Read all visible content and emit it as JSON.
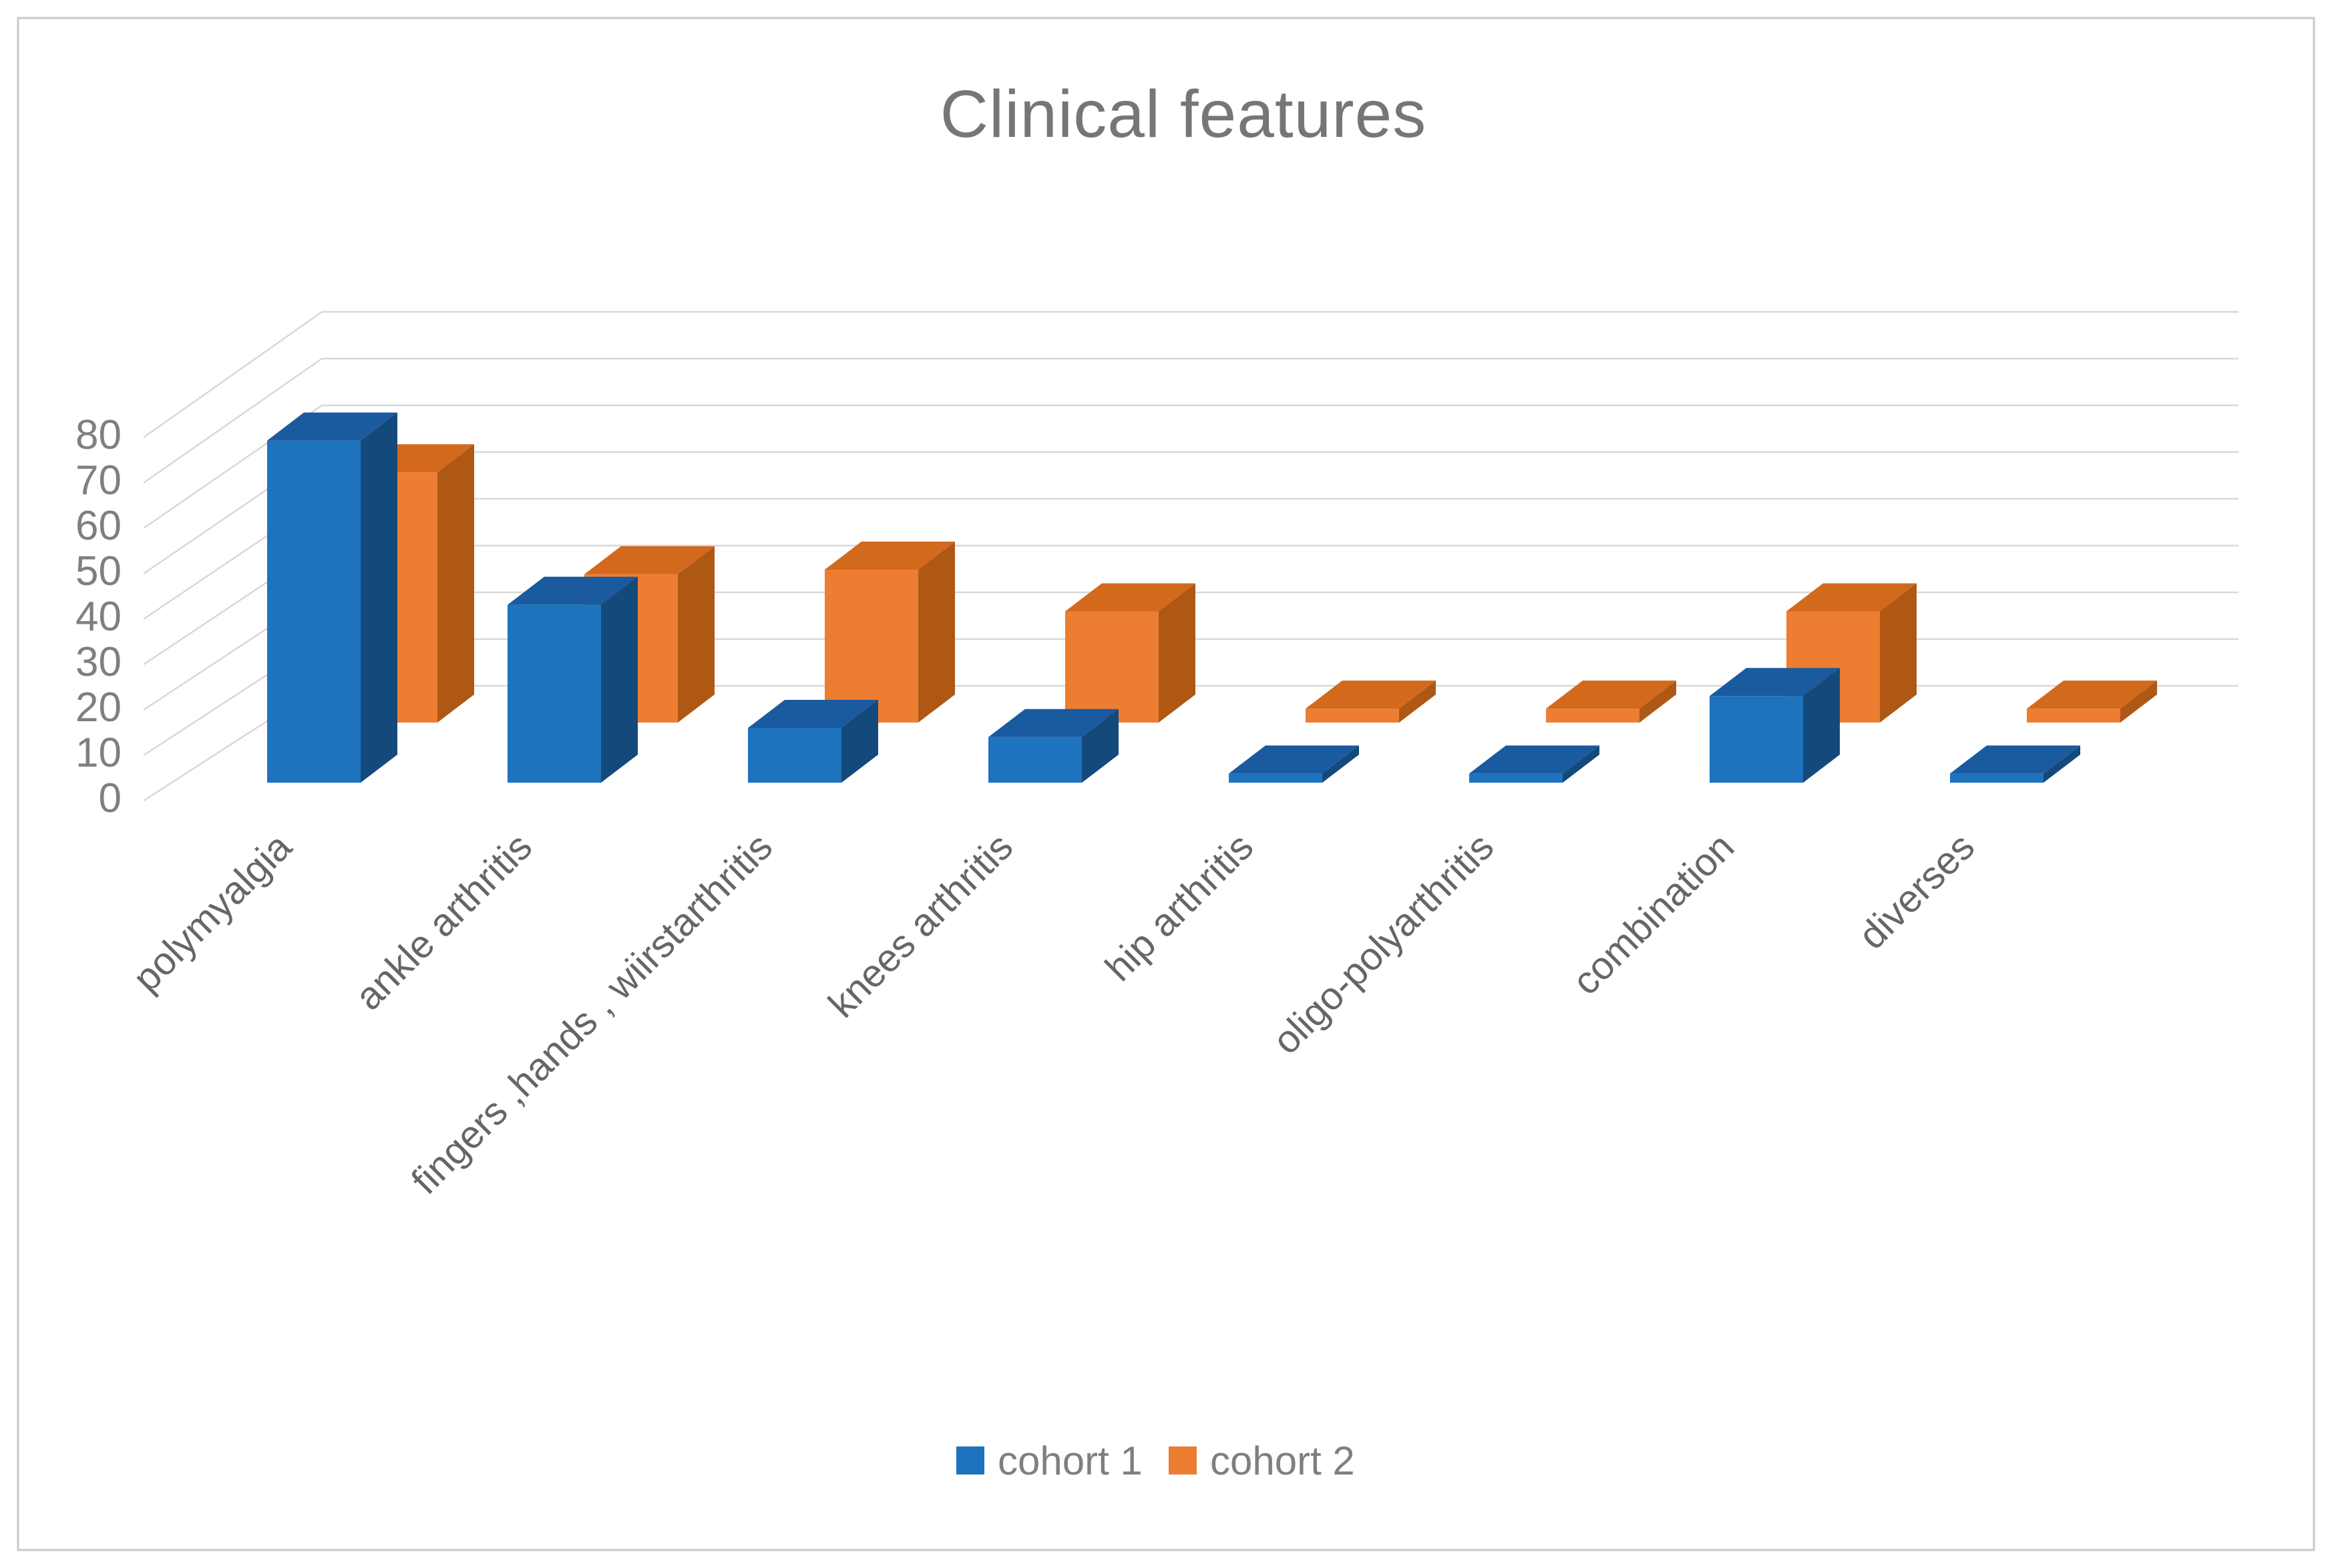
{
  "window": {
    "background": "#ffffff",
    "border_color": "#c9c9c9"
  },
  "chart_data": {
    "type": "bar",
    "variant": "3d-clustered-column",
    "title": "Clinical features",
    "title_color": "#767676",
    "categories": [
      "polymyalgia",
      "ankle arthritis",
      "fingers ,hands , wiirstarthritis",
      "knees arthritis",
      "hip arthritis",
      "oligo-polyarthritis",
      "combination",
      "diverses"
    ],
    "series": [
      {
        "name": "cohort 1",
        "values": [
          75,
          39,
          12,
          10,
          2,
          2,
          19,
          2
        ],
        "color": "#1E73BE",
        "color_top": "#1A5A9E",
        "color_side": "#14497C"
      },
      {
        "name": "cohort 2",
        "values": [
          54,
          32,
          33,
          24,
          3,
          3,
          24,
          3
        ],
        "color": "#ED7D31",
        "color_top": "#D2691C",
        "color_side": "#AE5814"
      }
    ],
    "ylim": [
      0,
      80
    ],
    "y_ticks": [
      0,
      10,
      20,
      30,
      40,
      50,
      60,
      70,
      80
    ],
    "grid": "horizontal-3d",
    "legend_position": "bottom",
    "axis_text_color": "#7f7f7f",
    "category_text_color": "#666666",
    "gridline_color": "#d8d8d8"
  }
}
